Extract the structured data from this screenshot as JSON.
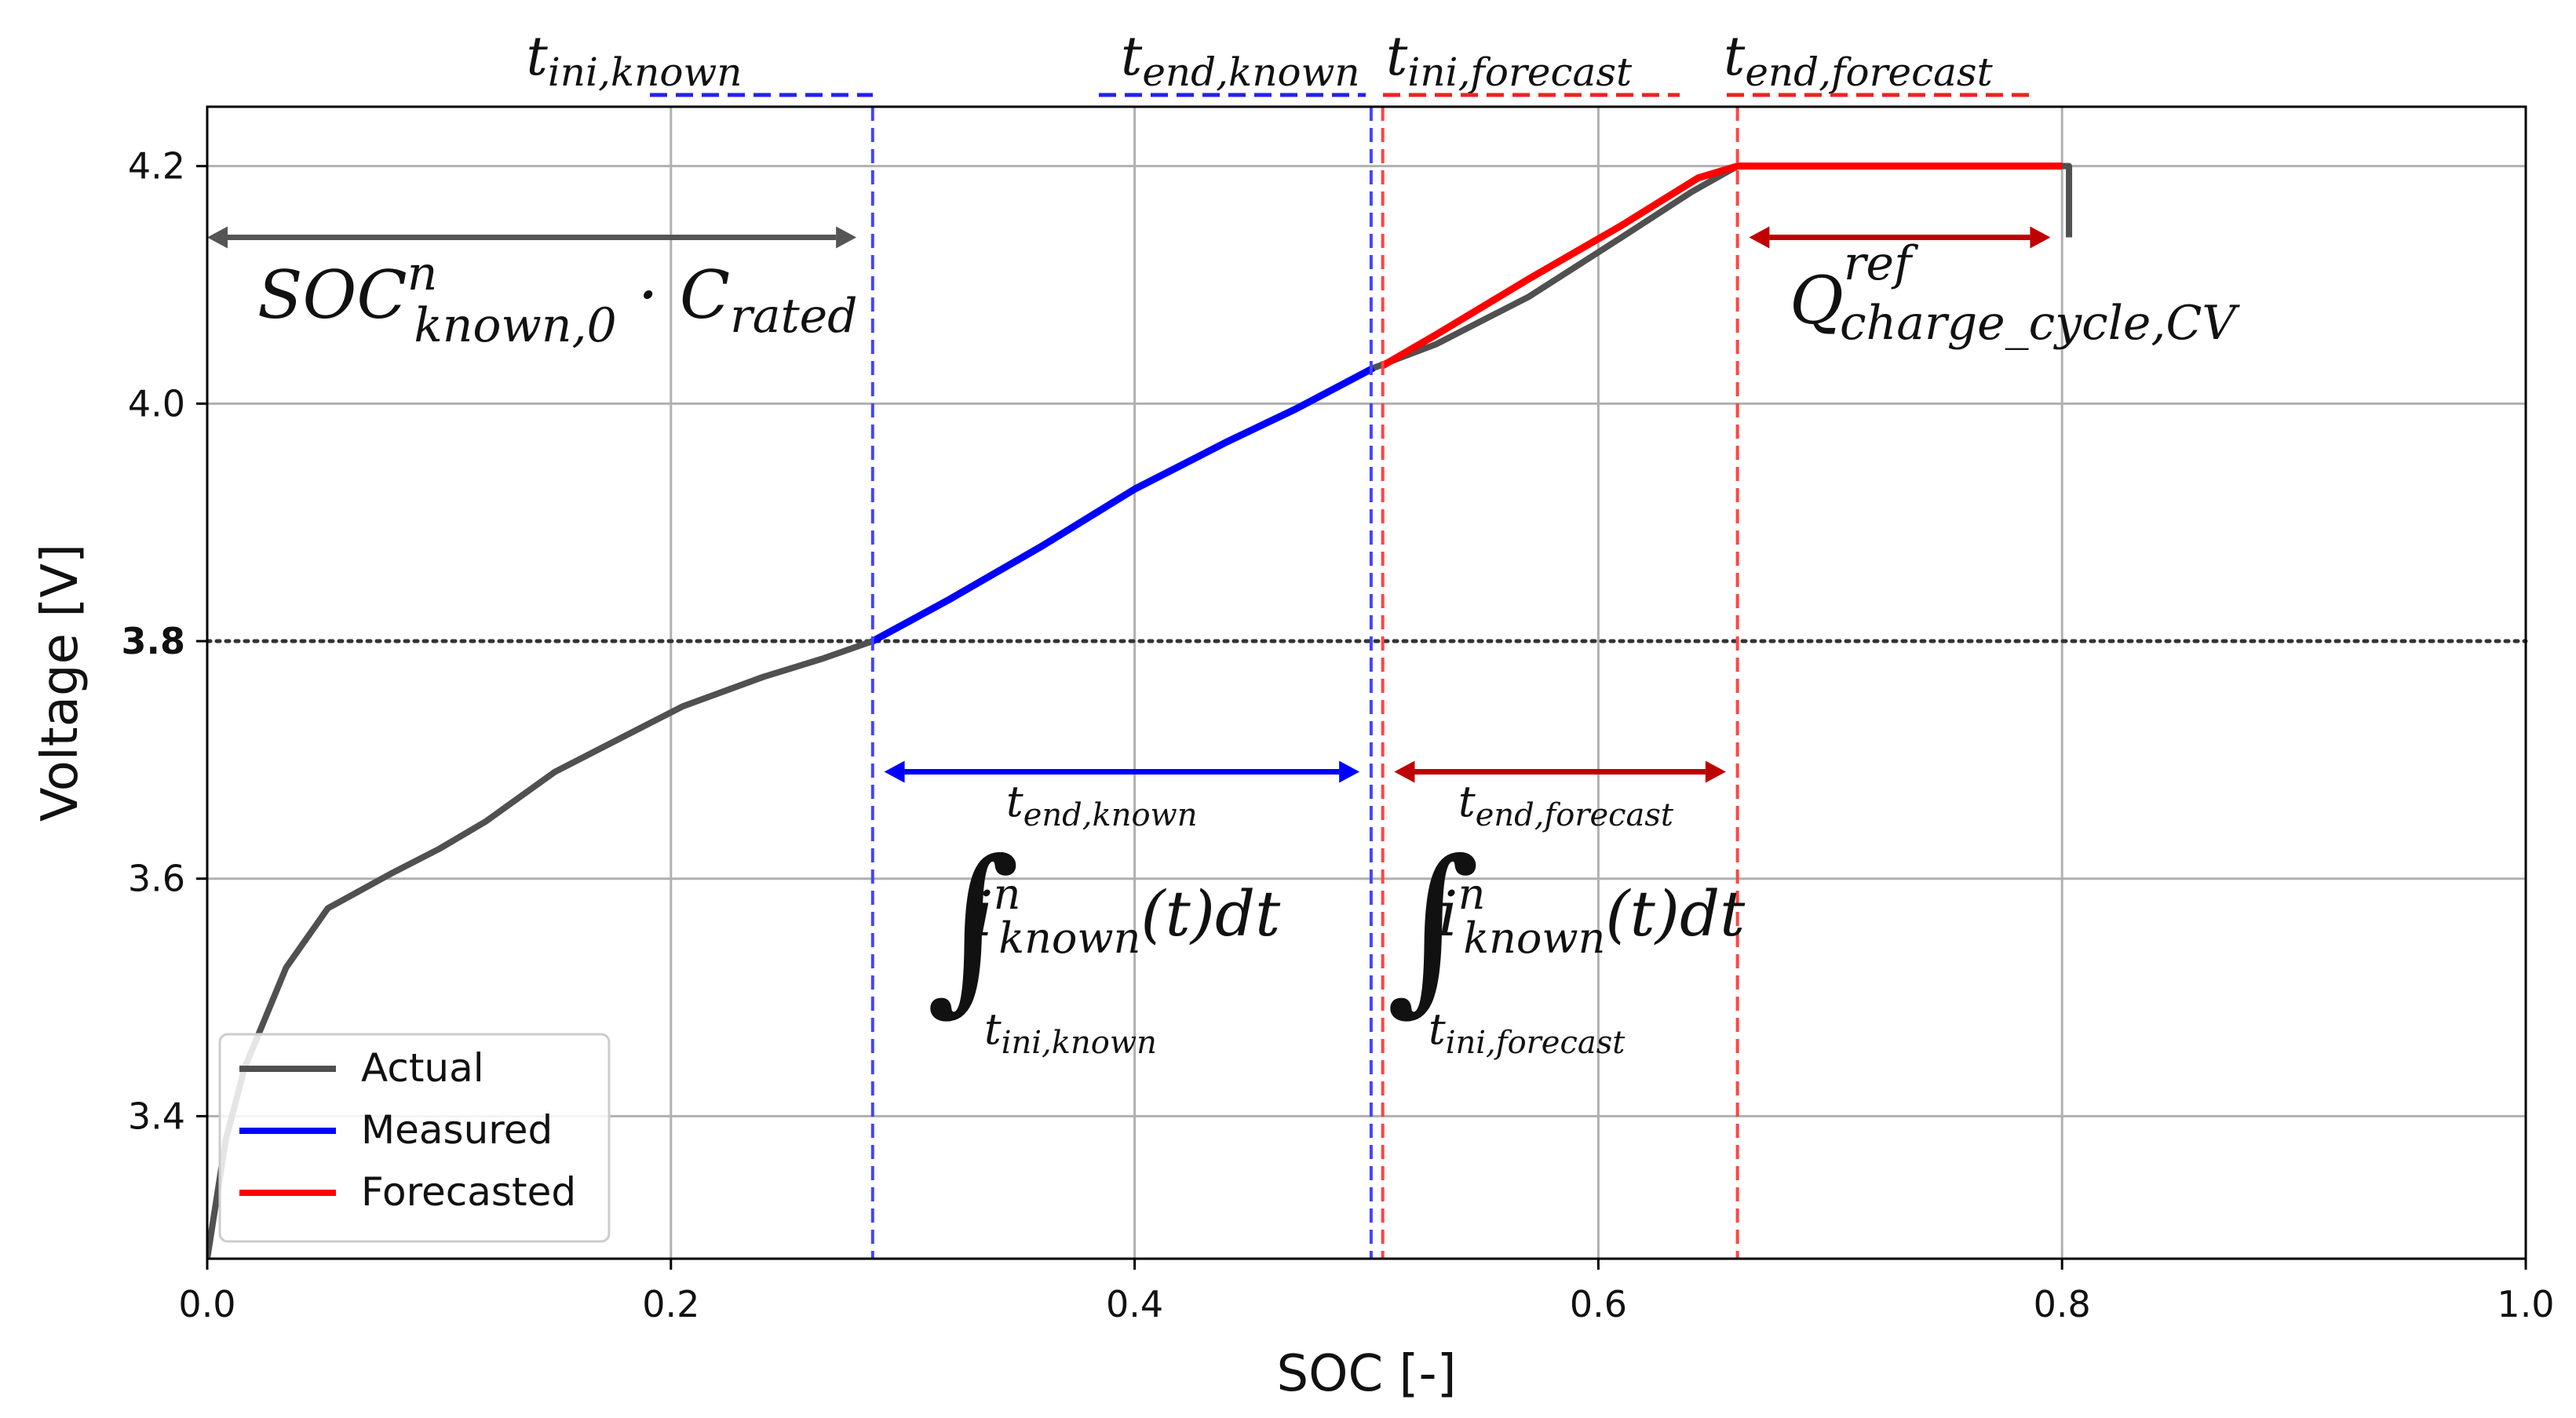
{
  "chart_data": {
    "type": "line",
    "xlabel": "SOC [-]",
    "ylabel": "Voltage [V]",
    "xlim": [
      0.0,
      1.0
    ],
    "ylim": [
      3.28,
      4.25
    ],
    "xticks": [
      0.0,
      0.2,
      0.4,
      0.6,
      0.8,
      1.0
    ],
    "xtick_labels": [
      "0.0",
      "0.2",
      "0.4",
      "0.6",
      "0.8",
      "1.0"
    ],
    "yticks": [
      3.4,
      3.6,
      3.8,
      4.0,
      4.2
    ],
    "ytick_labels": [
      "3.4",
      "3.6",
      "3.8",
      "4.0",
      "4.2"
    ],
    "grid": true,
    "legend_position": "bottom-left",
    "reference_line": {
      "y": 3.8,
      "label": "3.8",
      "style": "dotted"
    },
    "series": [
      {
        "name": "Actual",
        "color": "#505050",
        "x": [
          0.0,
          0.008,
          0.016,
          0.034,
          0.052,
          0.08,
          0.1,
          0.12,
          0.15,
          0.19,
          0.205,
          0.24,
          0.265,
          0.287,
          0.32,
          0.36,
          0.4,
          0.44,
          0.47,
          0.503,
          0.53,
          0.57,
          0.61,
          0.64,
          0.66,
          0.8,
          0.803,
          0.803
        ],
        "y": [
          3.28,
          3.38,
          3.44,
          3.525,
          3.575,
          3.605,
          3.625,
          3.648,
          3.69,
          3.73,
          3.745,
          3.77,
          3.785,
          3.8,
          3.835,
          3.88,
          3.928,
          3.968,
          3.996,
          4.03,
          4.05,
          4.09,
          4.14,
          4.178,
          4.2,
          4.2,
          4.2,
          4.14
        ]
      },
      {
        "name": "Measured",
        "color": "#0000ff",
        "x": [
          0.287,
          0.32,
          0.36,
          0.4,
          0.44,
          0.47,
          0.503
        ],
        "y": [
          3.8,
          3.835,
          3.88,
          3.928,
          3.968,
          3.996,
          4.03
        ]
      },
      {
        "name": "Forecasted",
        "color": "#ff0000",
        "x": [
          0.507,
          0.53,
          0.57,
          0.61,
          0.643,
          0.66,
          0.8
        ],
        "y": [
          4.032,
          4.058,
          4.105,
          4.15,
          4.19,
          4.2,
          4.2
        ]
      }
    ],
    "vertical_markers": [
      {
        "x": 0.287,
        "color": "#4444ff",
        "label": "t_ini,known"
      },
      {
        "x": 0.502,
        "color": "#4444ff",
        "label": "t_end,known"
      },
      {
        "x": 0.507,
        "color": "#ff4444",
        "label": "t_ini,forecast"
      },
      {
        "x": 0.66,
        "color": "#ff4444",
        "label": "t_end,forecast"
      }
    ],
    "arrows": [
      {
        "from": 0.0,
        "to": 0.28,
        "y": 4.14,
        "color": "#555555"
      },
      {
        "from": 0.665,
        "to": 0.795,
        "y": 4.14,
        "color": "#c00000"
      },
      {
        "from": 0.292,
        "to": 0.497,
        "y": 3.69,
        "color": "#0000ff"
      },
      {
        "from": 0.512,
        "to": 0.655,
        "y": 3.69,
        "color": "#c00000"
      }
    ]
  },
  "legend": {
    "items": [
      {
        "label": "Actual",
        "color": "#505050"
      },
      {
        "label": "Measured",
        "color": "#0000ff"
      },
      {
        "label": "Forecasted",
        "color": "#ff0000"
      }
    ]
  },
  "annotations": {
    "t_ini_known": {
      "base": "t",
      "sub": "ini,known"
    },
    "t_end_known": {
      "base": "t",
      "sub": "end,known"
    },
    "t_ini_forecast": {
      "base": "t",
      "sub": "ini,forecast"
    },
    "t_end_forecast": {
      "base": "t",
      "sub": "end,forecast"
    },
    "soc_known": {
      "base": "SOC",
      "sup": "n",
      "sub": "known,0",
      "dot": " · ",
      "base2": "C",
      "sub2": "rated"
    },
    "q_ref": {
      "base": "Q",
      "sup": "ref",
      "sub": "charge_cycle,CV"
    },
    "integral_known": {
      "symbol": "∫",
      "upper": "t",
      "upper_sub": "end,known",
      "base": "i",
      "sup": "n",
      "sub": "known",
      "tail": "(t)dt",
      "lower": "t",
      "lower_sub": "ini,known"
    },
    "integral_forecast": {
      "symbol": "∫",
      "upper": "t",
      "upper_sub": "end,forecast",
      "base": "i",
      "sup": "n",
      "sub": "known",
      "tail": "(t)dt",
      "lower": "t",
      "lower_sub": "ini,forecast"
    }
  }
}
